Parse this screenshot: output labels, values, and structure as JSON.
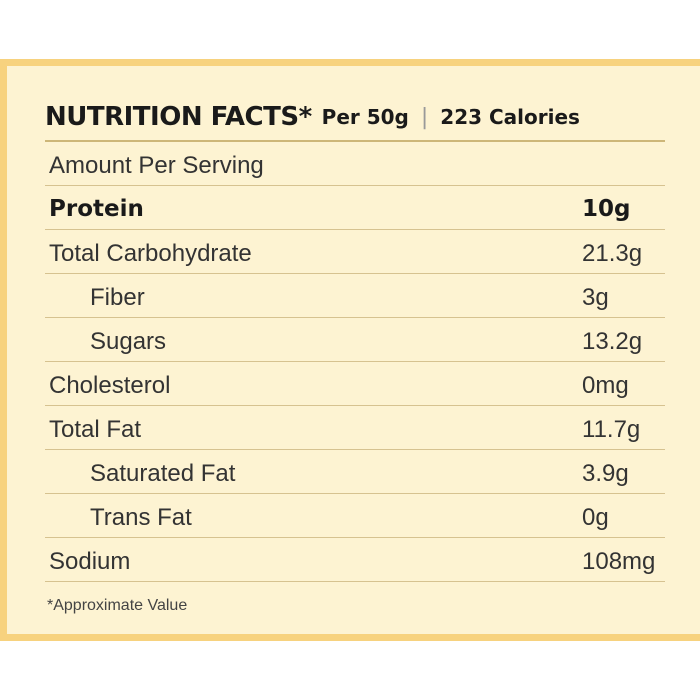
{
  "header": {
    "title": "NUTRITION FACTS*",
    "per": "Per 50g",
    "separator": "|",
    "calories": "223 Calories"
  },
  "serving_label": "Amount Per Serving",
  "rows": [
    {
      "name": "Protein",
      "value": "10g"
    },
    {
      "name": "Total Carbohydrate",
      "value": "21.3g"
    },
    {
      "name": "Fiber",
      "value": "3g"
    },
    {
      "name": "Sugars",
      "value": "13.2g"
    },
    {
      "name": "Cholesterol",
      "value": "0mg"
    },
    {
      "name": "Total Fat",
      "value": "11.7g"
    },
    {
      "name": "Saturated Fat",
      "value": "3.9g"
    },
    {
      "name": "Trans Fat",
      "value": "0g"
    },
    {
      "name": "Sodium",
      "value": "108mg"
    }
  ],
  "footnote": "*Approximate Value",
  "colors": {
    "panel_background": "#fdf3d2",
    "panel_border": "#f7d27e",
    "rule": "#d6c290"
  }
}
